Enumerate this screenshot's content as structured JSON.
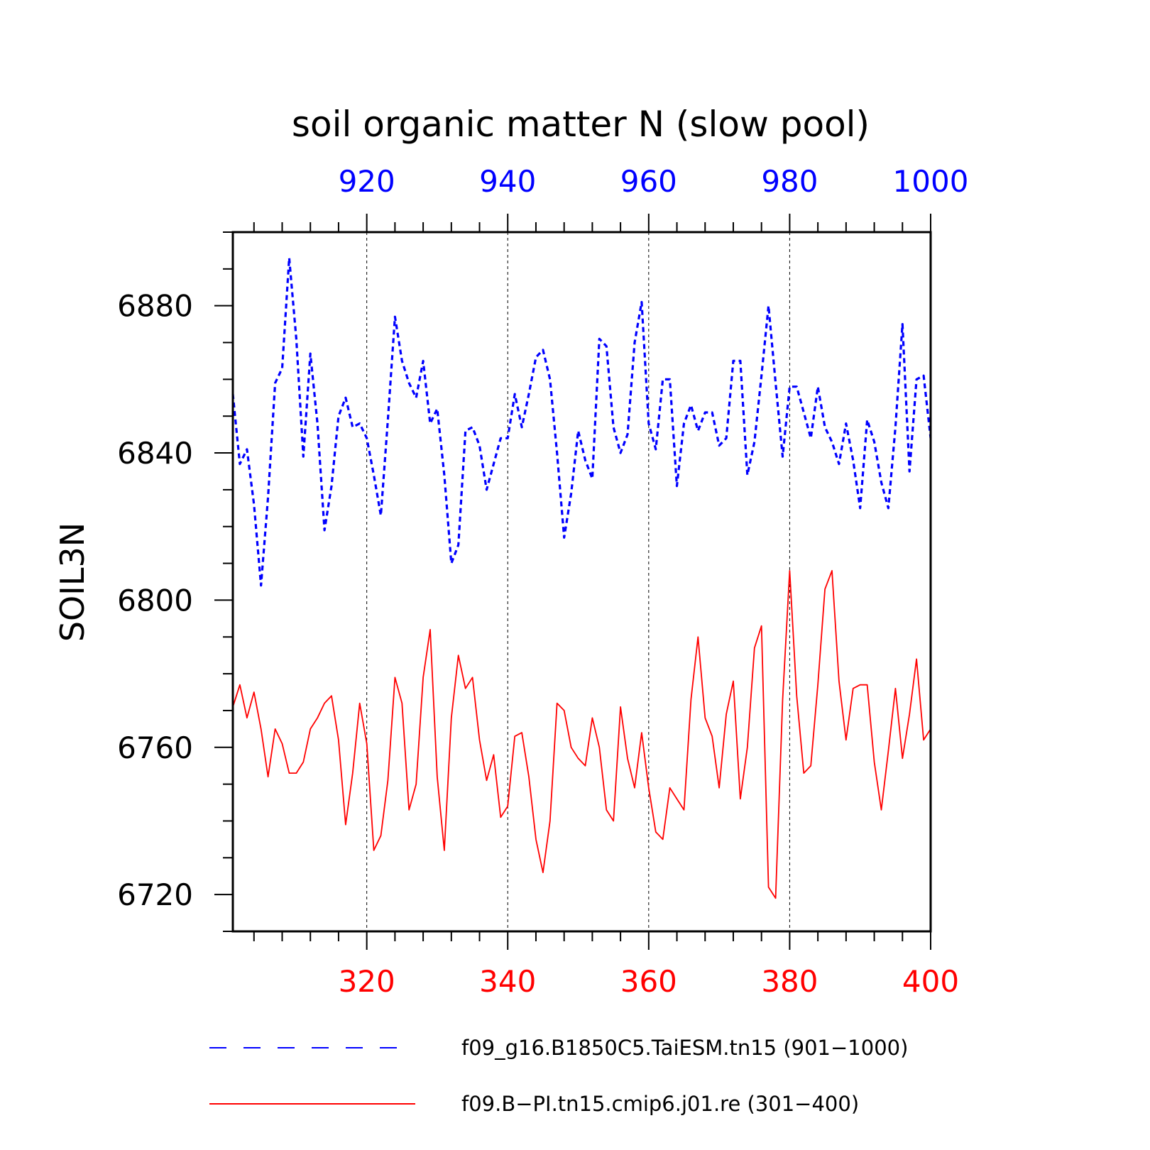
{
  "chart_data": {
    "type": "line",
    "title": "soil organic matter N (slow pool)",
    "ylabel": "SOIL3N",
    "ylim": [
      6710,
      6900
    ],
    "yticks": [
      6720,
      6760,
      6800,
      6840,
      6880
    ],
    "grid": "vertical dashed lines at labeled x ticks",
    "bottom_axis": {
      "color": "#ff0000",
      "range": [
        301,
        400
      ],
      "ticks": [
        320,
        340,
        360,
        380,
        400
      ]
    },
    "top_axis": {
      "color": "#0000ff",
      "range": [
        901,
        1000
      ],
      "ticks": [
        920,
        940,
        960,
        980,
        1000
      ]
    },
    "legend_position": "bottom",
    "series": [
      {
        "name": "f09_g16.B1850C5.TaiESM.tn15 (901−1000)",
        "color": "#0000ff",
        "style": "dashed",
        "axis": "top",
        "x_start": 901,
        "values": [
          6856,
          6837,
          6841,
          6826,
          6804,
          6828,
          6859,
          6863,
          6893,
          6871,
          6839,
          6867,
          6848,
          6819,
          6831,
          6850,
          6855,
          6847,
          6848,
          6844,
          6834,
          6823,
          6849,
          6877,
          6865,
          6859,
          6855,
          6865,
          6848,
          6852,
          6834,
          6810,
          6815,
          6846,
          6847,
          6842,
          6830,
          6837,
          6844,
          6844,
          6856,
          6847,
          6856,
          6866,
          6868,
          6860,
          6840,
          6817,
          6829,
          6846,
          6838,
          6833,
          6871,
          6869,
          6847,
          6840,
          6845,
          6870,
          6881,
          6848,
          6841,
          6860,
          6860,
          6831,
          6848,
          6853,
          6846,
          6851,
          6851,
          6842,
          6844,
          6865,
          6865,
          6834,
          6843,
          6861,
          6880,
          6859,
          6839,
          6858,
          6858,
          6851,
          6844,
          6858,
          6847,
          6843,
          6837,
          6848,
          6838,
          6825,
          6849,
          6843,
          6832,
          6825,
          6847,
          6875,
          6835,
          6860,
          6861,
          6844
        ]
      },
      {
        "name": "f09.B−PI.tn15.cmip6.j01.re (301−400)",
        "color": "#ff0000",
        "style": "solid",
        "axis": "bottom",
        "x_start": 301,
        "values": [
          6771,
          6777,
          6768,
          6775,
          6765,
          6752,
          6765,
          6761,
          6753,
          6753,
          6756,
          6765,
          6768,
          6772,
          6774,
          6762,
          6739,
          6753,
          6772,
          6761,
          6732,
          6736,
          6751,
          6779,
          6772,
          6743,
          6750,
          6779,
          6792,
          6752,
          6732,
          6768,
          6785,
          6776,
          6779,
          6762,
          6751,
          6758,
          6741,
          6744,
          6763,
          6764,
          6752,
          6735,
          6726,
          6740,
          6772,
          6770,
          6760,
          6757,
          6755,
          6768,
          6760,
          6743,
          6740,
          6771,
          6757,
          6749,
          6764,
          6749,
          6737,
          6735,
          6749,
          6746,
          6743,
          6773,
          6790,
          6768,
          6763,
          6749,
          6769,
          6778,
          6746,
          6760,
          6787,
          6793,
          6722,
          6719,
          6773,
          6808,
          6774,
          6753,
          6755,
          6777,
          6803,
          6808,
          6778,
          6762,
          6776,
          6777,
          6777,
          6756,
          6743,
          6759,
          6776,
          6757,
          6769,
          6784,
          6762,
          6765
        ]
      }
    ]
  }
}
